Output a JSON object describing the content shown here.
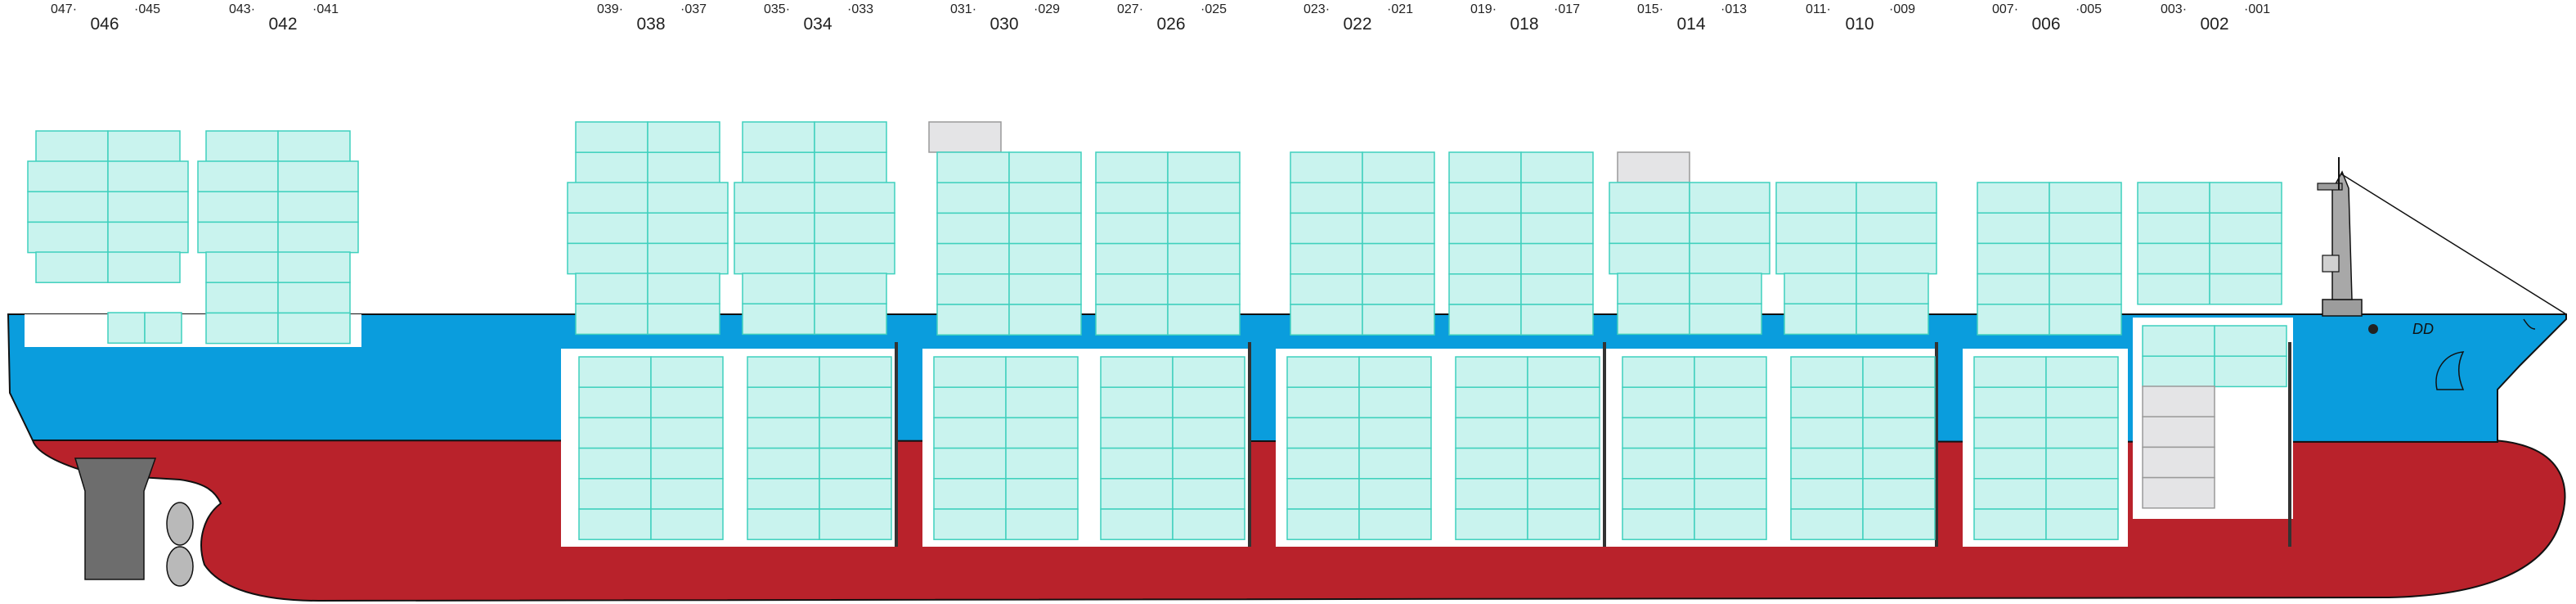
{
  "colors": {
    "hull_red": "#b9222b",
    "hull_blue": "#0a9ddd",
    "container_fill": "#c9f3ee",
    "container_stroke": "#3fd0bd",
    "empty_slot_fill": "#e4e4e6",
    "empty_slot_stroke": "#9a9a9a",
    "hold_fill": "#ffffff",
    "outline": "#111111",
    "rudder": "#6d6d6d",
    "propeller": "#b9b9b9"
  },
  "bays": [
    {
      "id": "bay-046",
      "main": "046",
      "aft": "047",
      "fwd": "045"
    },
    {
      "id": "bay-042",
      "main": "042",
      "aft": "043",
      "fwd": "041"
    },
    {
      "id": "bay-038",
      "main": "038",
      "aft": "039",
      "fwd": "037"
    },
    {
      "id": "bay-034",
      "main": "034",
      "aft": "035",
      "fwd": "033"
    },
    {
      "id": "bay-030",
      "main": "030",
      "aft": "031",
      "fwd": "029"
    },
    {
      "id": "bay-026",
      "main": "026",
      "aft": "027",
      "fwd": "025"
    },
    {
      "id": "bay-022",
      "main": "022",
      "aft": "023",
      "fwd": "021"
    },
    {
      "id": "bay-018",
      "main": "018",
      "aft": "019",
      "fwd": "017"
    },
    {
      "id": "bay-014",
      "main": "014",
      "aft": "015",
      "fwd": "013"
    },
    {
      "id": "bay-010",
      "main": "010",
      "aft": "011",
      "fwd": "009"
    },
    {
      "id": "bay-006",
      "main": "006",
      "aft": "007",
      "fwd": "005"
    },
    {
      "id": "bay-002",
      "main": "002",
      "aft": "003",
      "fwd": "001"
    }
  ]
}
